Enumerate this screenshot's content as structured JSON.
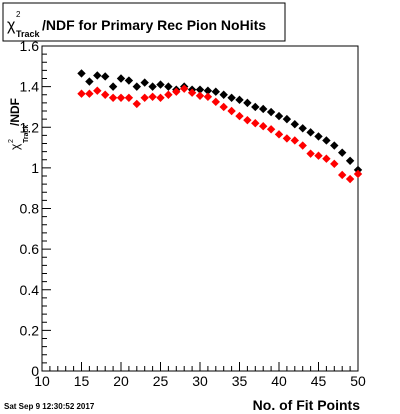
{
  "chart_data": {
    "type": "scatter",
    "title_main": "/NDF for Primary Rec Pion NoHits",
    "title_chi": "χ",
    "title_sup": "2",
    "title_sub": "Track",
    "ylabel_main": "/NDF",
    "ylabel_chi": "χ",
    "ylabel_sup": "2",
    "ylabel_sub": "Track",
    "xlabel": "No. of Fit Points",
    "footer": "Sat Sep  9 12:30:52 2017",
    "xlim": [
      10,
      50
    ],
    "ylim": [
      0,
      1.6
    ],
    "x_ticks": [
      10,
      15,
      20,
      25,
      30,
      35,
      40,
      45,
      50
    ],
    "x_tick_labels": [
      "10",
      "15",
      "20",
      "25",
      "30",
      "35",
      "40",
      "45",
      "50"
    ],
    "y_ticks": [
      0,
      0.2,
      0.4,
      0.6,
      0.8,
      1,
      1.2,
      1.4,
      1.6
    ],
    "y_tick_labels": [
      "0",
      "0.2",
      "0.4",
      "0.6",
      "0.8",
      "1",
      "1.2",
      "1.4",
      "1.6"
    ],
    "colors": {
      "series_1": "#000000",
      "series_2": "#ff0000"
    },
    "marker": "diamond",
    "series": [
      {
        "x": [
          15,
          16,
          17,
          18,
          19,
          20,
          21,
          22,
          23,
          24,
          25,
          26,
          27,
          28,
          29,
          30,
          31,
          32,
          33,
          34,
          35,
          36,
          37,
          38,
          39,
          40,
          41,
          42,
          43,
          44,
          45,
          46,
          47,
          48,
          49,
          50
        ],
        "y": [
          1.465,
          1.425,
          1.455,
          1.45,
          1.4,
          1.44,
          1.43,
          1.4,
          1.42,
          1.4,
          1.41,
          1.4,
          1.385,
          1.4,
          1.385,
          1.385,
          1.38,
          1.375,
          1.36,
          1.345,
          1.335,
          1.32,
          1.3,
          1.29,
          1.275,
          1.255,
          1.24,
          1.215,
          1.195,
          1.175,
          1.155,
          1.135,
          1.11,
          1.075,
          1.035,
          0.99
        ]
      },
      {
        "x": [
          15,
          16,
          17,
          18,
          19,
          20,
          21,
          22,
          23,
          24,
          25,
          26,
          27,
          28,
          29,
          30,
          31,
          32,
          33,
          34,
          35,
          36,
          37,
          38,
          39,
          40,
          41,
          42,
          43,
          44,
          45,
          46,
          47,
          48,
          49,
          50
        ],
        "y": [
          1.365,
          1.365,
          1.38,
          1.36,
          1.345,
          1.345,
          1.345,
          1.315,
          1.345,
          1.35,
          1.345,
          1.36,
          1.375,
          1.39,
          1.37,
          1.355,
          1.35,
          1.325,
          1.3,
          1.28,
          1.255,
          1.235,
          1.22,
          1.205,
          1.19,
          1.165,
          1.145,
          1.135,
          1.11,
          1.07,
          1.06,
          1.045,
          1.02,
          0.965,
          0.945,
          0.97
        ]
      }
    ]
  }
}
